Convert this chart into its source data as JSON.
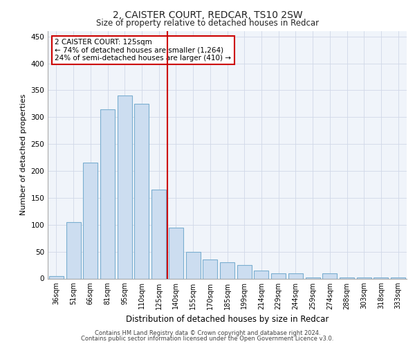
{
  "title_line1": "2, CAISTER COURT, REDCAR, TS10 2SW",
  "title_line2": "Size of property relative to detached houses in Redcar",
  "xlabel": "Distribution of detached houses by size in Redcar",
  "ylabel": "Number of detached properties",
  "categories": [
    "36sqm",
    "51sqm",
    "66sqm",
    "81sqm",
    "95sqm",
    "110sqm",
    "125sqm",
    "140sqm",
    "155sqm",
    "170sqm",
    "185sqm",
    "199sqm",
    "214sqm",
    "229sqm",
    "244sqm",
    "259sqm",
    "274sqm",
    "288sqm",
    "303sqm",
    "318sqm",
    "333sqm"
  ],
  "values": [
    5,
    105,
    215,
    315,
    340,
    325,
    165,
    95,
    50,
    35,
    30,
    25,
    15,
    10,
    10,
    2,
    10,
    2,
    2,
    2,
    2
  ],
  "bar_color": "#ccddf0",
  "bar_edge_color": "#7aaed0",
  "highlight_index": 6,
  "highlight_line_color": "#cc0000",
  "annotation_text": "2 CAISTER COURT: 125sqm\n← 74% of detached houses are smaller (1,264)\n24% of semi-detached houses are larger (410) →",
  "annotation_box_color": "#ffffff",
  "annotation_box_edge_color": "#cc0000",
  "ylim": [
    0,
    460
  ],
  "yticks": [
    0,
    50,
    100,
    150,
    200,
    250,
    300,
    350,
    400,
    450
  ],
  "footer_line1": "Contains HM Land Registry data © Crown copyright and database right 2024.",
  "footer_line2": "Contains public sector information licensed under the Open Government Licence v3.0.",
  "bg_color": "#f0f4fa",
  "grid_color": "#d0d8e8"
}
